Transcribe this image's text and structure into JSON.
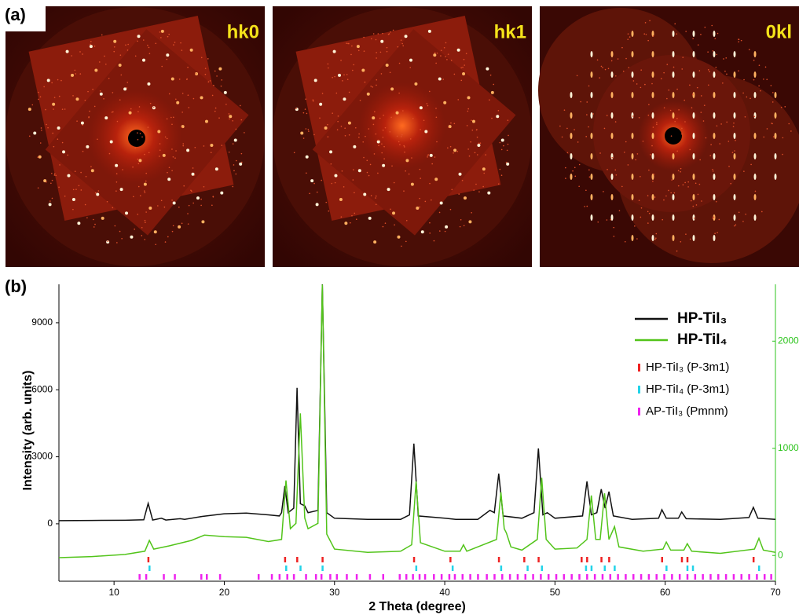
{
  "panel_a": {
    "label": "(a)",
    "images": [
      {
        "label": "hk0"
      },
      {
        "label": "hk1"
      },
      {
        "label": "0kl"
      }
    ]
  },
  "chart_data": {
    "type": "line",
    "panel_label": "(b)",
    "x_label": "2 Theta (degree)",
    "y_label": "Intensity (arb. units)",
    "xlim": [
      5,
      70
    ],
    "xticks": [
      10,
      20,
      30,
      40,
      50,
      60,
      70
    ],
    "ylim": [
      -2570,
      10720
    ],
    "yticks": [
      0,
      3000,
      6000,
      9000
    ],
    "y2lim": [
      -240,
      2530
    ],
    "y2ticks": [
      0,
      1000,
      2000
    ],
    "y2_color": "#2ec41e",
    "series": [
      {
        "name": "HP-TiI₃",
        "color": "#111111",
        "axis": "y",
        "x": [
          5,
          8,
          11,
          12.7,
          13.1,
          13.5,
          14.3,
          14.7,
          16,
          16.4,
          18,
          20,
          22,
          24,
          25,
          25.2,
          25.5,
          25.8,
          26.3,
          26.6,
          26.9,
          27.3,
          27.6,
          28.5,
          28.9,
          29.3,
          30,
          33,
          36,
          36.8,
          37.2,
          37.6,
          40,
          41,
          43,
          44.1,
          44.5,
          44.9,
          45.3,
          47,
          48.1,
          48.5,
          48.9,
          49.3,
          50,
          52.5,
          52.9,
          53.3,
          53.8,
          54.2,
          54.55,
          54.9,
          55.3,
          57,
          59.4,
          59.7,
          60.1,
          61.2,
          61.5,
          61.9,
          65,
          67.6,
          68,
          68.4,
          70
        ],
        "values": [
          140,
          150,
          160,
          180,
          915,
          170,
          250,
          170,
          230,
          200,
          330,
          450,
          480,
          400,
          350,
          500,
          1690,
          500,
          700,
          6085,
          900,
          800,
          500,
          600,
          10720,
          500,
          250,
          200,
          200,
          400,
          3590,
          350,
          250,
          200,
          200,
          600,
          500,
          2250,
          350,
          250,
          500,
          3375,
          400,
          500,
          250,
          350,
          1900,
          400,
          500,
          1550,
          700,
          1440,
          350,
          200,
          250,
          630,
          250,
          250,
          530,
          230,
          200,
          280,
          740,
          250,
          200
        ]
      },
      {
        "name": "HP-TiI₄",
        "color": "#52c41a",
        "axis": "y2",
        "x": [
          5,
          8,
          11,
          12.8,
          13.2,
          13.6,
          15,
          17,
          18.2,
          20,
          22,
          24,
          25.2,
          25.6,
          26,
          26.5,
          26.9,
          27.3,
          27.6,
          28.5,
          28.9,
          29.3,
          30,
          33,
          36,
          37,
          37.4,
          37.8,
          40,
          41.4,
          41.7,
          42,
          44.7,
          45.1,
          45.4,
          45.6,
          46,
          47,
          48.4,
          48.8,
          49.2,
          50,
          52,
          52.9,
          53.3,
          53.7,
          54.1,
          54.5,
          54.9,
          55.4,
          55.8,
          58,
          59.8,
          60.1,
          60.5,
          61.7,
          62,
          62.4,
          65,
          68.1,
          68.5,
          68.9,
          70
        ],
        "values": [
          -20,
          -10,
          10,
          40,
          140,
          60,
          90,
          140,
          190,
          176,
          170,
          130,
          150,
          700,
          250,
          300,
          1326,
          350,
          250,
          300,
          2527,
          200,
          60,
          30,
          40,
          100,
          690,
          120,
          40,
          40,
          100,
          40,
          150,
          590,
          250,
          210,
          80,
          50,
          150,
          725,
          150,
          60,
          70,
          150,
          560,
          150,
          150,
          580,
          150,
          270,
          80,
          40,
          60,
          125,
          50,
          50,
          110,
          40,
          20,
          60,
          160,
          50,
          30
        ]
      }
    ],
    "reflections": [
      {
        "name": "HP-TiI₃ (P-3m1)",
        "color": "#ee2222",
        "x": [
          13.1,
          25.5,
          26.6,
          28.9,
          37.2,
          40.5,
          44.9,
          47.2,
          48.5,
          52.4,
          52.9,
          54.2,
          54.9,
          59.7,
          61.5,
          62.0,
          68.0
        ]
      },
      {
        "name": "HP-TiI₄ (P-3m1)",
        "color": "#22d3e8",
        "x": [
          13.2,
          25.6,
          26.9,
          28.9,
          37.4,
          40.7,
          45.1,
          47.5,
          48.8,
          52.8,
          53.3,
          54.5,
          55.4,
          60.1,
          62.0,
          62.5,
          68.5
        ]
      },
      {
        "name": "AP-TiI₃ (Pmnm)",
        "color": "#ee22ee",
        "x": [
          12.3,
          12.9,
          14.5,
          15.5,
          17.9,
          18.4,
          19.6,
          23.1,
          24.3,
          25.0,
          25.7,
          26.3,
          27.4,
          28.3,
          28.8,
          29.6,
          30.2,
          31.1,
          32.0,
          33.2,
          34.4,
          35.9,
          36.5,
          37.1,
          37.7,
          38.2,
          39.0,
          39.7,
          40.4,
          40.9,
          41.6,
          42.3,
          43.0,
          43.8,
          44.5,
          45.2,
          45.9,
          46.6,
          47.3,
          48.0,
          48.7,
          49.4,
          50.1,
          50.8,
          51.5,
          52.2,
          52.9,
          53.6,
          54.3,
          55.0,
          55.7,
          56.4,
          57.1,
          57.8,
          58.5,
          59.2,
          59.9,
          60.6,
          61.3,
          62.0,
          62.7,
          63.4,
          64.1,
          64.8,
          65.5,
          66.2,
          66.9,
          67.6,
          68.3,
          69.0,
          69.6
        ]
      }
    ]
  }
}
